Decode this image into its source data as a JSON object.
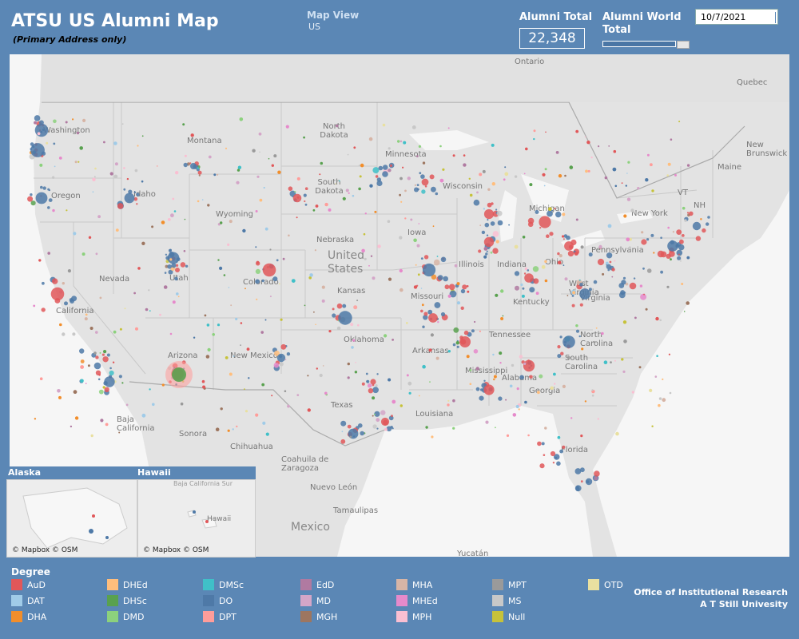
{
  "header": {
    "title": "ATSU  US Alumni Map",
    "subtitle": "(Primary Address only)",
    "map_view_label": "Map View",
    "map_view_value": "US",
    "alumni_total_label": "Alumni Total",
    "alumni_total_value": "22,348",
    "world_total_label": "Alumni World Total",
    "date_value": "10/7/2021"
  },
  "map": {
    "labels": {
      "ontario": "Ontario",
      "quebec": "Quebec",
      "new_brunswick": "New Brunswick",
      "washington": "Washington",
      "oregon": "Oregon",
      "california": "California",
      "nevada": "Nevada",
      "idaho": "Idaho",
      "montana": "Montana",
      "wyoming": "Wyoming",
      "utah": "Utah",
      "arizona": "Arizona",
      "colorado": "Colorado",
      "new_mexico": "New Mexico",
      "north_dakota": "North Dakota",
      "south_dakota": "South Dakota",
      "nebraska": "Nebraska",
      "kansas": "Kansas",
      "oklahoma": "Oklahoma",
      "texas": "Texas",
      "minnesota": "Minnesota",
      "iowa": "Iowa",
      "missouri": "Missouri",
      "arkansas": "Arkansas",
      "louisiana": "Louisiana",
      "wisconsin": "Wisconsin",
      "illinois": "Illinois",
      "michigan": "Michigan",
      "indiana": "Indiana",
      "ohio": "Ohio",
      "kentucky": "Kentucky",
      "tennessee": "Tennessee",
      "mississippi": "Mississippi",
      "alabama": "Alabama",
      "georgia": "Georgia",
      "florida": "Florida",
      "south_carolina": "South Carolina",
      "north_carolina": "North Carolina",
      "virginia": "Virginia",
      "west_virginia": "West Virginia",
      "pennsylvania": "Pennsylvania",
      "new_york": "New York",
      "maine": "Maine",
      "vt": "VT",
      "nh": "NH",
      "united_states": "United States",
      "baja_california": "Baja California",
      "sonora": "Sonora",
      "chihuahua": "Chihuahua",
      "coahuila": "Coahuila de Zaragoza",
      "nuevo_leon": "Nuevo León",
      "tamaulipas": "Tamaulipas",
      "mexico": "Mexico",
      "yucatan": "Yucatán"
    },
    "insets": {
      "alaska_label": "Alaska",
      "hawaii_label": "Hawaii",
      "hawaii_state": "Hawaii",
      "baja_california_sur": "Baja California Sur",
      "attribution": "© Mapbox © OSM"
    }
  },
  "legend": {
    "title": "Degree",
    "items": [
      {
        "label": "AuD",
        "color": "#e15759"
      },
      {
        "label": "DAT",
        "color": "#a0cbe8"
      },
      {
        "label": "DHA",
        "color": "#f28e2b"
      },
      {
        "label": "DHEd",
        "color": "#ffbe7d"
      },
      {
        "label": "DHSc",
        "color": "#59a14f"
      },
      {
        "label": "DMD",
        "color": "#8cd17d"
      },
      {
        "label": "DMSc",
        "color": "#40c0c8"
      },
      {
        "label": "DO",
        "color": "#4e79a7"
      },
      {
        "label": "DPT",
        "color": "#ff9d9a"
      },
      {
        "label": "EdD",
        "color": "#b07aa1"
      },
      {
        "label": "MD",
        "color": "#d4a6c8"
      },
      {
        "label": "MGH",
        "color": "#9d7660"
      },
      {
        "label": "MHA",
        "color": "#d7b5a6"
      },
      {
        "label": "MHEd",
        "color": "#e68acb"
      },
      {
        "label": "MPH",
        "color": "#fabfd2"
      },
      {
        "label": "MPT",
        "color": "#9a9a9a"
      },
      {
        "label": "MS",
        "color": "#c8c8c8"
      },
      {
        "label": "Null",
        "color": "#c6c23a"
      },
      {
        "label": "OTD",
        "color": "#e9e0a0"
      }
    ]
  },
  "footer": {
    "line1": "Office of Institutional Research",
    "line2": "A T Still Univesity"
  }
}
